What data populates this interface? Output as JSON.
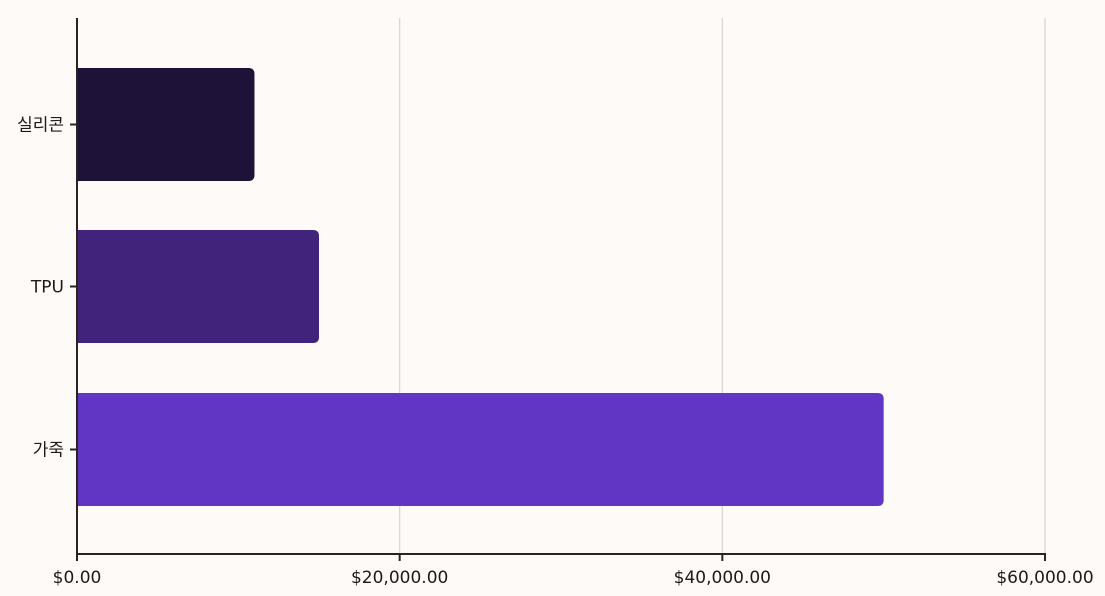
{
  "chart_data": {
    "type": "bar",
    "orientation": "horizontal",
    "categories": [
      "실리콘",
      "TPU",
      "가죽"
    ],
    "values": [
      11000,
      15000,
      50000
    ],
    "colors": [
      "#1e1239",
      "#42237c",
      "#6236c5"
    ],
    "xlim": [
      0,
      60000
    ],
    "x_ticks": [
      0,
      20000,
      40000,
      60000
    ],
    "x_tick_labels": [
      "$0.00",
      "$20,000.00",
      "$40,000.00",
      "$60,000.00"
    ],
    "title": "",
    "xlabel": "",
    "ylabel": "",
    "grid": "vertical",
    "legend": "none"
  }
}
